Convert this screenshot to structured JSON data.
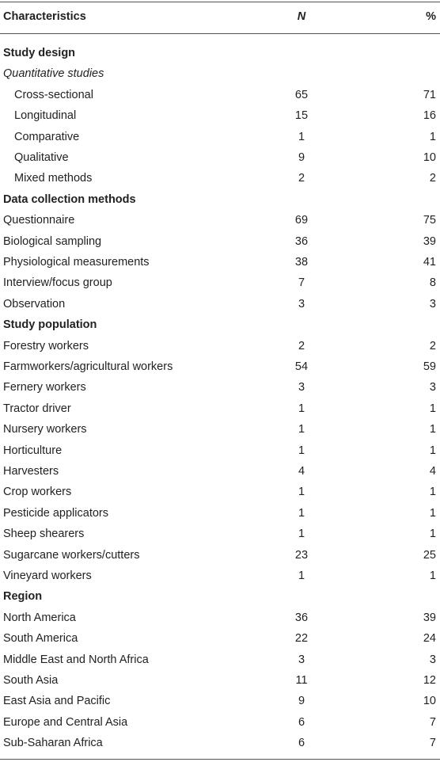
{
  "table": {
    "header": [
      "Characteristics",
      "N",
      "%"
    ],
    "rows": [
      {
        "label": "Study design",
        "style": "section"
      },
      {
        "label": "Quantitative studies",
        "style": "subheading"
      },
      {
        "label": "Cross-sectional",
        "n": 65,
        "pct": 71,
        "style": "indented"
      },
      {
        "label": "Longitudinal",
        "n": 15,
        "pct": 16,
        "style": "indented"
      },
      {
        "label": "Comparative",
        "n": 1,
        "pct": 1,
        "style": "indented"
      },
      {
        "label": "Qualitative",
        "n": 9,
        "pct": 10,
        "style": "indented"
      },
      {
        "label": "Mixed methods",
        "n": 2,
        "pct": 2,
        "style": "indented"
      },
      {
        "label": "Data collection methods",
        "style": "section"
      },
      {
        "label": "Questionnaire",
        "n": 69,
        "pct": 75,
        "style": "item"
      },
      {
        "label": "Biological sampling",
        "n": 36,
        "pct": 39,
        "style": "item"
      },
      {
        "label": "Physiological measurements",
        "n": 38,
        "pct": 41,
        "style": "item"
      },
      {
        "label": "Interview/focus group",
        "n": 7,
        "pct": 8,
        "style": "item"
      },
      {
        "label": "Observation",
        "n": 3,
        "pct": 3,
        "style": "item"
      },
      {
        "label": "Study population",
        "style": "section"
      },
      {
        "label": "Forestry workers",
        "n": 2,
        "pct": 2,
        "style": "item"
      },
      {
        "label": "Farmworkers/agricultural workers",
        "n": 54,
        "pct": 59,
        "style": "item"
      },
      {
        "label": "Fernery workers",
        "n": 3,
        "pct": 3,
        "style": "item"
      },
      {
        "label": "Tractor driver",
        "n": 1,
        "pct": 1,
        "style": "item"
      },
      {
        "label": "Nursery workers",
        "n": 1,
        "pct": 1,
        "style": "item"
      },
      {
        "label": "Horticulture",
        "n": 1,
        "pct": 1,
        "style": "item"
      },
      {
        "label": "Harvesters",
        "n": 4,
        "pct": 4,
        "style": "item"
      },
      {
        "label": "Crop workers",
        "n": 1,
        "pct": 1,
        "style": "item"
      },
      {
        "label": "Pesticide applicators",
        "n": 1,
        "pct": 1,
        "style": "item"
      },
      {
        "label": "Sheep shearers",
        "n": 1,
        "pct": 1,
        "style": "item"
      },
      {
        "label": "Sugarcane workers/cutters",
        "n": 23,
        "pct": 25,
        "style": "item"
      },
      {
        "label": "Vineyard workers",
        "n": 1,
        "pct": 1,
        "style": "item"
      },
      {
        "label": "Region",
        "style": "section"
      },
      {
        "label": "North America",
        "n": 36,
        "pct": 39,
        "style": "item"
      },
      {
        "label": "South America",
        "n": 22,
        "pct": 24,
        "style": "item"
      },
      {
        "label": "Middle East and North Africa",
        "n": 3,
        "pct": 3,
        "style": "item"
      },
      {
        "label": "South Asia",
        "n": 11,
        "pct": 12,
        "style": "item"
      },
      {
        "label": "East Asia and Pacific",
        "n": 9,
        "pct": 10,
        "style": "item"
      },
      {
        "label": "Europe and Central Asia",
        "n": 6,
        "pct": 7,
        "style": "item"
      },
      {
        "label": "Sub-Saharan Africa",
        "n": 6,
        "pct": 7,
        "style": "item"
      }
    ]
  }
}
